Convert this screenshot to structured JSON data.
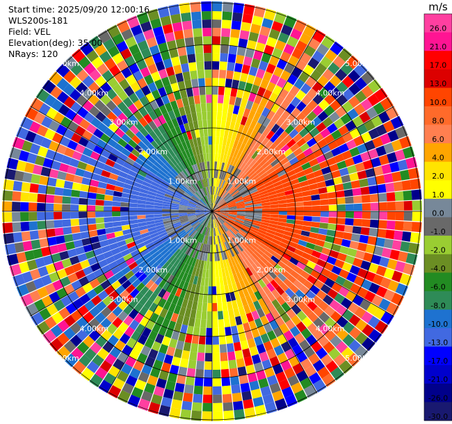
{
  "header": {
    "start_time": "Start time: 2025/09/20 12:00:16",
    "instrument": "WLS200s-181",
    "field": "Field: VEL",
    "elevation": "Elevation(deg): 35.00",
    "nrays": "NRays: 120"
  },
  "chart_data": {
    "type": "heatmap",
    "projection": "polar-ppi",
    "n_rays": 120,
    "range_rings_km": [
      "1.00km",
      "2.00km",
      "3.00km",
      "4.00km",
      "5.00km"
    ],
    "radial_spokes_deg": [
      0,
      30,
      60,
      90,
      120,
      150,
      180,
      210,
      240,
      270,
      300,
      330
    ],
    "colorbar": {
      "unit": "m/s",
      "tick_labels": [
        "26.0",
        "21.0",
        "17.0",
        "13.0",
        "10.0",
        "8.0",
        "6.0",
        "4.0",
        "2.0",
        "1.0",
        "0.0",
        "-1.0",
        "-2.0",
        "-4.0",
        "-6.0",
        "-8.0",
        "-10.0",
        "-13.0",
        "-17.0",
        "-21.0",
        "-26.0",
        "-30.0"
      ],
      "colors_top_to_bottom": [
        "#ff3fa0",
        "#ff1493",
        "#ff0000",
        "#dc0000",
        "#ff4500",
        "#ff6a2a",
        "#ff7f50",
        "#ffa500",
        "#ffe400",
        "#ffff00",
        "#778899",
        "#696969",
        "#9acd32",
        "#6b8e23",
        "#228b22",
        "#2e8b57",
        "#1e72d0",
        "#4169e1",
        "#0000ff",
        "#0000cd",
        "#00008b",
        "#191970"
      ]
    }
  }
}
